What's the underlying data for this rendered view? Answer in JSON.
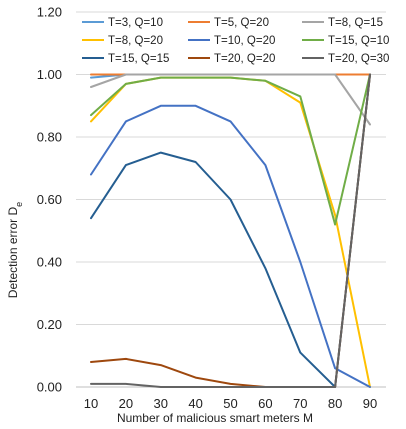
{
  "chart_data": {
    "type": "line",
    "xlabel": "Number of malicious smart meters M",
    "ylabel_main": "Detection error  D",
    "ylabel_sub": "e",
    "x": [
      10,
      20,
      30,
      40,
      50,
      60,
      70,
      80,
      90
    ],
    "xlim": [
      10,
      90
    ],
    "ylim": [
      0,
      1.2
    ],
    "yticks": [
      "0.00",
      "0.20",
      "0.40",
      "0.60",
      "0.80",
      "1.00",
      "1.20"
    ],
    "ytick_values": [
      0,
      0.2,
      0.4,
      0.6,
      0.8,
      1.0,
      1.2
    ],
    "xticks": [
      "10",
      "20",
      "30",
      "40",
      "50",
      "60",
      "70",
      "80",
      "90"
    ],
    "grid": "horizontal",
    "legend_position": "top",
    "series": [
      {
        "name": "T=3, Q=10",
        "color": "#5b9bd5",
        "values": [
          0.99,
          1.0,
          1.0,
          1.0,
          1.0,
          1.0,
          1.0,
          1.0,
          1.0
        ]
      },
      {
        "name": "T=5, Q=20",
        "color": "#ed7d31",
        "values": [
          1.0,
          1.0,
          1.0,
          1.0,
          1.0,
          1.0,
          1.0,
          1.0,
          1.0
        ]
      },
      {
        "name": "T=8, Q=15",
        "color": "#a5a5a5",
        "values": [
          0.96,
          1.0,
          1.0,
          1.0,
          1.0,
          1.0,
          1.0,
          1.0,
          0.84
        ]
      },
      {
        "name": "T=8, Q=20",
        "color": "#ffc000",
        "values": [
          0.85,
          0.97,
          0.99,
          0.99,
          0.99,
          0.98,
          0.91,
          0.55,
          0.0
        ]
      },
      {
        "name": "T=10, Q=20",
        "color": "#4472c4",
        "values": [
          0.68,
          0.85,
          0.9,
          0.9,
          0.85,
          0.71,
          0.4,
          0.06,
          0.0
        ]
      },
      {
        "name": "T=15, Q=10",
        "color": "#70ad47",
        "values": [
          0.87,
          0.97,
          0.99,
          0.99,
          0.99,
          0.98,
          0.93,
          0.52,
          1.0
        ]
      },
      {
        "name": "T=15, Q=15",
        "color": "#255e91",
        "values": [
          0.54,
          0.71,
          0.75,
          0.72,
          0.6,
          0.38,
          0.11,
          0.0,
          1.0
        ]
      },
      {
        "name": "T=20, Q=20",
        "color": "#9e480e",
        "values": [
          0.08,
          0.09,
          0.07,
          0.03,
          0.01,
          0.0,
          0.0,
          0.0,
          1.0
        ]
      },
      {
        "name": "T=20, Q=30",
        "color": "#636363",
        "values": [
          0.01,
          0.01,
          0.0,
          0.0,
          0.0,
          0.0,
          0.0,
          0.0,
          1.0
        ]
      }
    ]
  }
}
